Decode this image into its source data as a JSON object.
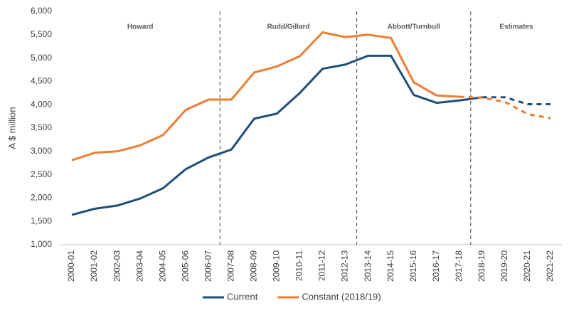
{
  "chart_data": {
    "type": "line",
    "y_label": "A $ million",
    "categories": [
      "2000-01",
      "2001-02",
      "2002-03",
      "2003-04",
      "2004-05",
      "2005-06",
      "2006-07",
      "2007-08",
      "2008-09",
      "2009-10",
      "2010-11",
      "2011-12",
      "2012-13",
      "2013-14",
      "2014-15",
      "2015-16",
      "2016-17",
      "2017-18",
      "2018-19",
      "2019-20",
      "2020-21",
      "2021-22"
    ],
    "series": [
      {
        "name": "Current",
        "color": "#1f4e79",
        "dashed_from": 18,
        "values": [
          1640,
          1770,
          1840,
          1990,
          2210,
          2620,
          2870,
          3040,
          3700,
          3810,
          4250,
          4770,
          4860,
          5050,
          5050,
          4210,
          4040,
          4090,
          4160,
          4160,
          4010,
          4010
        ]
      },
      {
        "name": "Constant (2018/19)",
        "color": "#ed7d31",
        "dashed_from": 17,
        "values": [
          2810,
          2970,
          3000,
          3130,
          3350,
          3890,
          4110,
          4110,
          4690,
          4820,
          5040,
          5550,
          5450,
          5500,
          5430,
          4480,
          4200,
          4170,
          4150,
          4060,
          3800,
          3710
        ]
      }
    ],
    "periods": [
      {
        "label": "Howard",
        "x": [
          -0.5,
          6.5
        ]
      },
      {
        "label": "Rudd/Gillard",
        "x": [
          6.5,
          12.5
        ]
      },
      {
        "label": "Abbott/Turnbull",
        "x": [
          12.5,
          17.5
        ]
      },
      {
        "label": "Estimates",
        "x": [
          17.5,
          21.5
        ]
      }
    ],
    "ylim": [
      1000,
      6000
    ],
    "yticks": [
      {
        "value": 1000,
        "label": "1,000"
      },
      {
        "value": 1500,
        "label": "1,500"
      },
      {
        "value": 2000,
        "label": "2,000"
      },
      {
        "value": 2500,
        "label": "2,500"
      },
      {
        "value": 3000,
        "label": "3,000"
      },
      {
        "value": 3500,
        "label": "3,500"
      },
      {
        "value": 4000,
        "label": "4,000"
      },
      {
        "value": 4500,
        "label": "4,500"
      },
      {
        "value": 5000,
        "label": "5,000"
      },
      {
        "value": 5500,
        "label": "5,500"
      },
      {
        "value": 6000,
        "label": "6,000"
      }
    ],
    "grid": false,
    "legend": "bottom"
  }
}
